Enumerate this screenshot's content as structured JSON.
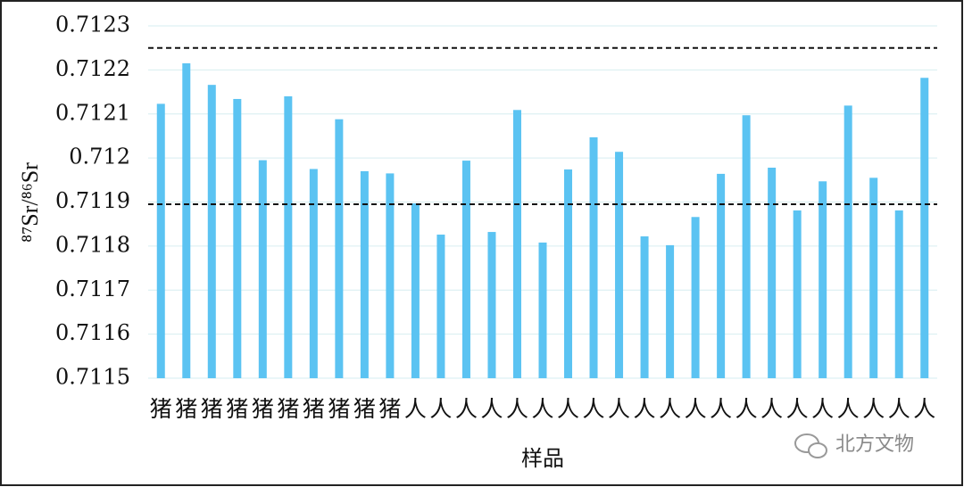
{
  "chart_data": {
    "type": "bar",
    "y_label": "⁸⁷Sr/⁸⁶Sr",
    "x_label": "样品",
    "watermark": "北方文物",
    "categories": [
      "猪",
      "猪",
      "猪",
      "猪",
      "猪",
      "猪",
      "猪",
      "猪",
      "猪",
      "猪",
      "人",
      "人",
      "人",
      "人",
      "人",
      "人",
      "人",
      "人",
      "人",
      "人",
      "人",
      "人",
      "人",
      "人",
      "人",
      "人",
      "人",
      "人",
      "人",
      "人",
      "人"
    ],
    "values": [
      0.712123,
      0.712215,
      0.712166,
      0.712134,
      0.711995,
      0.71214,
      0.711975,
      0.712088,
      0.71197,
      0.711965,
      0.711897,
      0.711826,
      0.711994,
      0.711832,
      0.712109,
      0.711808,
      0.711974,
      0.712047,
      0.712014,
      0.711822,
      0.711802,
      0.711866,
      0.711964,
      0.712097,
      0.711978,
      0.711881,
      0.711947,
      0.712119,
      0.711955,
      0.711881,
      0.712182
    ],
    "color": "#5bc3f2",
    "reference_lines": [
      0.71225,
      0.711895
    ],
    "ylim": [
      0.7115,
      0.7123
    ],
    "yticks": [
      0.7115,
      0.7116,
      0.7117,
      0.7118,
      0.7119,
      0.712,
      0.7121,
      0.7122,
      0.7123
    ],
    "grid": true
  }
}
